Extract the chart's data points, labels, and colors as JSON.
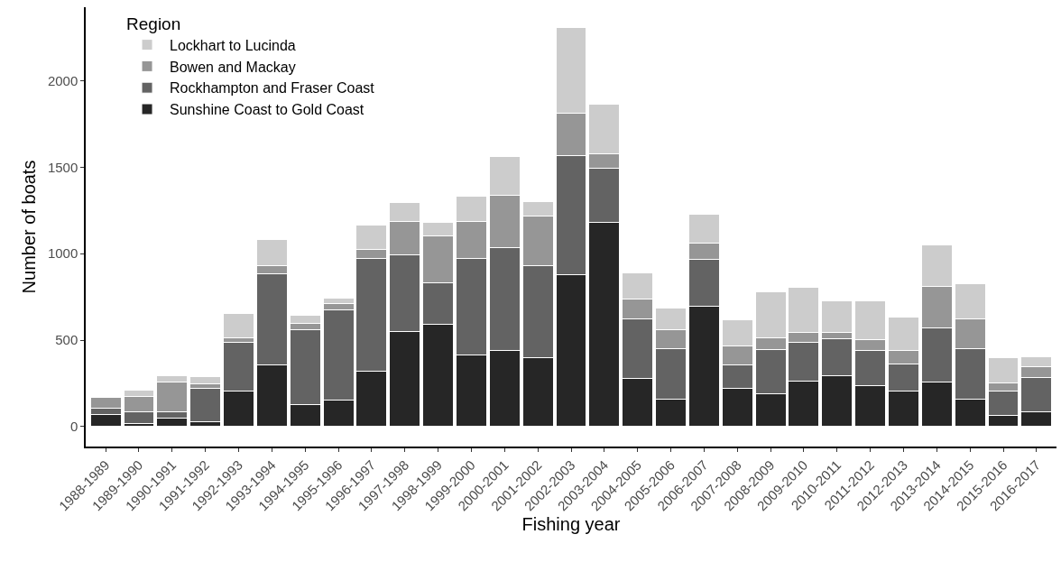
{
  "chart_data": {
    "type": "bar",
    "stacked": true,
    "xlabel": "Fishing year",
    "ylabel": "Number of boats",
    "legend_title": "Region",
    "legend": "top left",
    "grid": false,
    "categories": [
      "1988-1989",
      "1989-1990",
      "1990-1991",
      "1991-1992",
      "1992-1993",
      "1993-1994",
      "1994-1995",
      "1995-1996",
      "1996-1997",
      "1997-1998",
      "1998-1999",
      "1999-2000",
      "2000-2001",
      "2001-2002",
      "2002-2003",
      "2003-2004",
      "2004-2005",
      "2005-2006",
      "2006-2007",
      "2007-2008",
      "2008-2009",
      "2009-2010",
      "2010-2011",
      "2011-2012",
      "2012-2013",
      "2013-2014",
      "2014-2015",
      "2015-2016",
      "2016-2017"
    ],
    "series": [
      {
        "name": "Sunshine Coast to Gold Coast",
        "color": "#262626",
        "values": [
          70,
          20,
          50,
          30,
          205,
          355,
          130,
          155,
          320,
          550,
          590,
          415,
          440,
          400,
          880,
          1180,
          280,
          160,
          695,
          220,
          190,
          265,
          295,
          235,
          205,
          260,
          160,
          65,
          85
        ]
      },
      {
        "name": "Rockhampton and Fraser Coast",
        "color": "#636363",
        "values": [
          35,
          65,
          35,
          190,
          285,
          530,
          430,
          520,
          650,
          445,
          240,
          555,
          595,
          530,
          685,
          315,
          345,
          290,
          270,
          135,
          255,
          225,
          215,
          205,
          155,
          310,
          290,
          140,
          200
        ]
      },
      {
        "name": "Bowen and Mackay",
        "color": "#969696",
        "values": [
          65,
          90,
          175,
          25,
          25,
          45,
          35,
          35,
          55,
          190,
          275,
          215,
          305,
          290,
          245,
          85,
          115,
          110,
          95,
          110,
          70,
          55,
          35,
          65,
          80,
          240,
          175,
          50,
          60
        ]
      },
      {
        "name": "Lockhart to Lucinda",
        "color": "#cccccc",
        "values": [
          null,
          35,
          35,
          45,
          140,
          150,
          50,
          35,
          140,
          110,
          75,
          145,
          220,
          80,
          500,
          285,
          150,
          125,
          170,
          155,
          265,
          260,
          180,
          220,
          195,
          240,
          200,
          145,
          60
        ]
      }
    ],
    "ylim": [
      -115,
      2425
    ],
    "yticks": [
      0,
      500,
      1000,
      1500,
      2000
    ]
  }
}
